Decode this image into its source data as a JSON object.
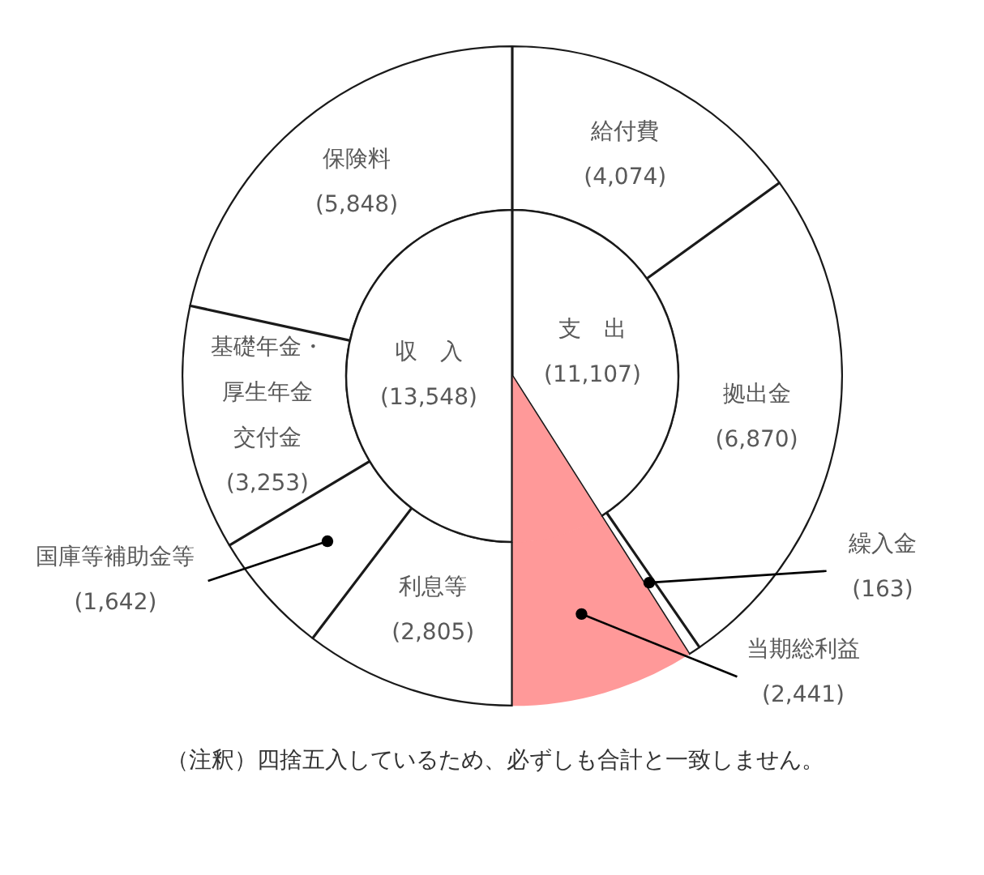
{
  "chart_data": [
    {
      "type": "donut",
      "categories": [
        "給付費",
        "拠出金",
        "繰入金",
        "当期総利益",
        "利息等",
        "国庫等補助金等",
        "基礎年金・厚生年金交付金",
        "保険料"
      ],
      "values": [
        4074,
        6870,
        163,
        2441,
        2805,
        1642,
        3253,
        5848
      ],
      "colors": [
        "#ffffff",
        "#ffffff",
        "#ffffff",
        "#ff9999",
        "#ffffff",
        "#ffffff",
        "#ffffff",
        "#ffffff"
      ],
      "value_labels": [
        "(4,074)",
        "(6,870)",
        "(163)",
        "(2,441)",
        "(2,805)",
        "(1,642)",
        "(3,253)",
        "(5,848)"
      ],
      "annotations": [
        "（注釈）四捨五入しているため、必ずしも合計と一致しません。"
      ]
    },
    {
      "type": "pie",
      "categories": [
        "支　出",
        null,
        "収　入"
      ],
      "values": [
        11107,
        2441,
        13548
      ],
      "colors": [
        "#ffffff",
        "#ff9999",
        "#ffffff"
      ],
      "value_labels": [
        "(11,107)",
        null,
        "(13,548)"
      ]
    }
  ]
}
